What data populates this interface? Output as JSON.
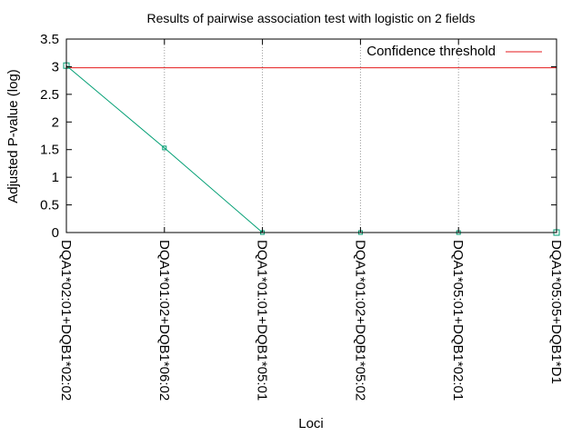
{
  "chart_data": {
    "type": "line",
    "title": "Results of pairwise association test with logistic on 2 fields",
    "xlabel": "Loci",
    "ylabel": "Adjusted P-value (log)",
    "ylim": [
      0,
      3.5
    ],
    "yticks": [
      "0",
      "0.5",
      "1",
      "1.5",
      "2",
      "2.5",
      "3",
      "3.5"
    ],
    "categories": [
      "DQA1*02:01+DQB1*02:02",
      "DQA1*01:02+DQB1*06:02",
      "DQA1*01:01+DQB1*05:01",
      "DQA1*01:02+DQB1*05:02",
      "DQA1*05:01+DQB1*02:01",
      "DQA1*05:05+DQB1*D1"
    ],
    "series": [
      {
        "values": [
          3.02,
          1.53,
          0,
          0,
          0,
          0
        ],
        "color": "#009e73"
      }
    ],
    "threshold": {
      "name": "Confidence threshold",
      "value": 2.98,
      "color": "#e41a1c"
    },
    "grid": {
      "x": true,
      "y": false
    },
    "legend_position": "top-right"
  }
}
